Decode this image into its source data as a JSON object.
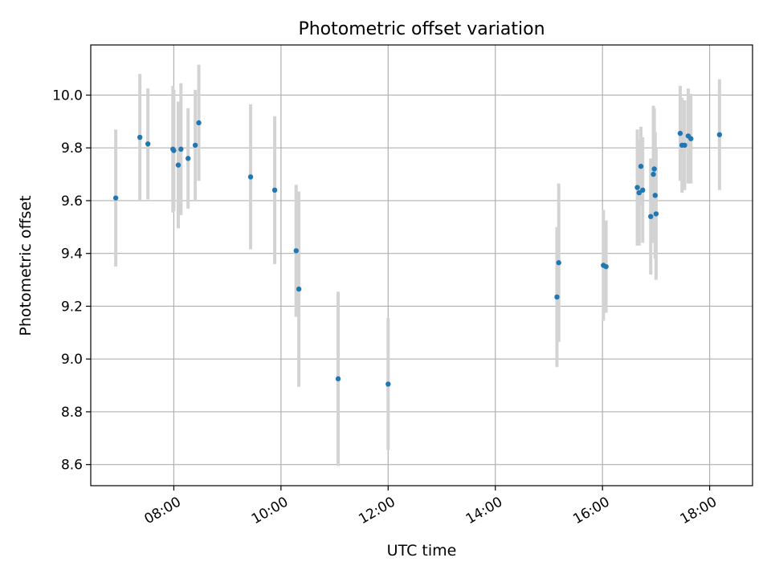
{
  "chart_data": {
    "type": "scatter",
    "title": "Photometric offset variation",
    "xlabel": "UTC time",
    "ylabel": "Photometric offset",
    "xlim": [
      "06:27",
      "18:48"
    ],
    "ylim": [
      8.52,
      10.19
    ],
    "x_ticks": [
      "08:00",
      "10:00",
      "12:00",
      "14:00",
      "16:00",
      "18:00"
    ],
    "y_ticks": [
      "8.6",
      "8.8",
      "9.0",
      "9.2",
      "9.4",
      "9.6",
      "9.8",
      "10.0"
    ],
    "grid": true,
    "colors": {
      "point": "#1f77b4",
      "errorbar": "#d3d3d3",
      "grid": "#b0b0b0"
    },
    "points": [
      {
        "x": "06:55",
        "y": 9.61,
        "err": 0.26
      },
      {
        "x": "07:22",
        "y": 9.84,
        "err": 0.24
      },
      {
        "x": "07:31",
        "y": 9.815,
        "err": 0.21
      },
      {
        "x": "07:59",
        "y": 9.795,
        "err": 0.24
      },
      {
        "x": "08:00",
        "y": 9.79,
        "err": 0.23
      },
      {
        "x": "08:05",
        "y": 9.735,
        "err": 0.24
      },
      {
        "x": "08:08",
        "y": 9.795,
        "err": 0.25
      },
      {
        "x": "08:16",
        "y": 9.76,
        "err": 0.19
      },
      {
        "x": "08:24",
        "y": 9.81,
        "err": 0.21
      },
      {
        "x": "08:28",
        "y": 9.895,
        "err": 0.22
      },
      {
        "x": "09:26",
        "y": 9.69,
        "err": 0.275
      },
      {
        "x": "09:53",
        "y": 9.64,
        "err": 0.28
      },
      {
        "x": "10:17",
        "y": 9.41,
        "err": 0.25
      },
      {
        "x": "10:20",
        "y": 9.265,
        "err": 0.37
      },
      {
        "x": "11:04",
        "y": 8.925,
        "err": 0.33
      },
      {
        "x": "12:00",
        "y": 8.905,
        "err": 0.25
      },
      {
        "x": "15:09",
        "y": 9.235,
        "err": 0.265
      },
      {
        "x": "15:11",
        "y": 9.365,
        "err": 0.3
      },
      {
        "x": "16:01",
        "y": 9.355,
        "err": 0.21
      },
      {
        "x": "16:04",
        "y": 9.35,
        "err": 0.175
      },
      {
        "x": "16:39",
        "y": 9.65,
        "err": 0.22
      },
      {
        "x": "16:41",
        "y": 9.63,
        "err": 0.2
      },
      {
        "x": "16:43",
        "y": 9.73,
        "err": 0.15
      },
      {
        "x": "16:45",
        "y": 9.64,
        "err": 0.2
      },
      {
        "x": "16:54",
        "y": 9.54,
        "err": 0.22
      },
      {
        "x": "16:57",
        "y": 9.7,
        "err": 0.26
      },
      {
        "x": "16:58",
        "y": 9.72,
        "err": 0.23
      },
      {
        "x": "16:59",
        "y": 9.62,
        "err": 0.24
      },
      {
        "x": "17:00",
        "y": 9.55,
        "err": 0.25
      },
      {
        "x": "17:27",
        "y": 9.855,
        "err": 0.18
      },
      {
        "x": "17:29",
        "y": 9.81,
        "err": 0.18
      },
      {
        "x": "17:32",
        "y": 9.81,
        "err": 0.17
      },
      {
        "x": "17:36",
        "y": 9.845,
        "err": 0.18
      },
      {
        "x": "17:39",
        "y": 9.835,
        "err": 0.17
      },
      {
        "x": "18:11",
        "y": 9.85,
        "err": 0.21
      }
    ]
  }
}
